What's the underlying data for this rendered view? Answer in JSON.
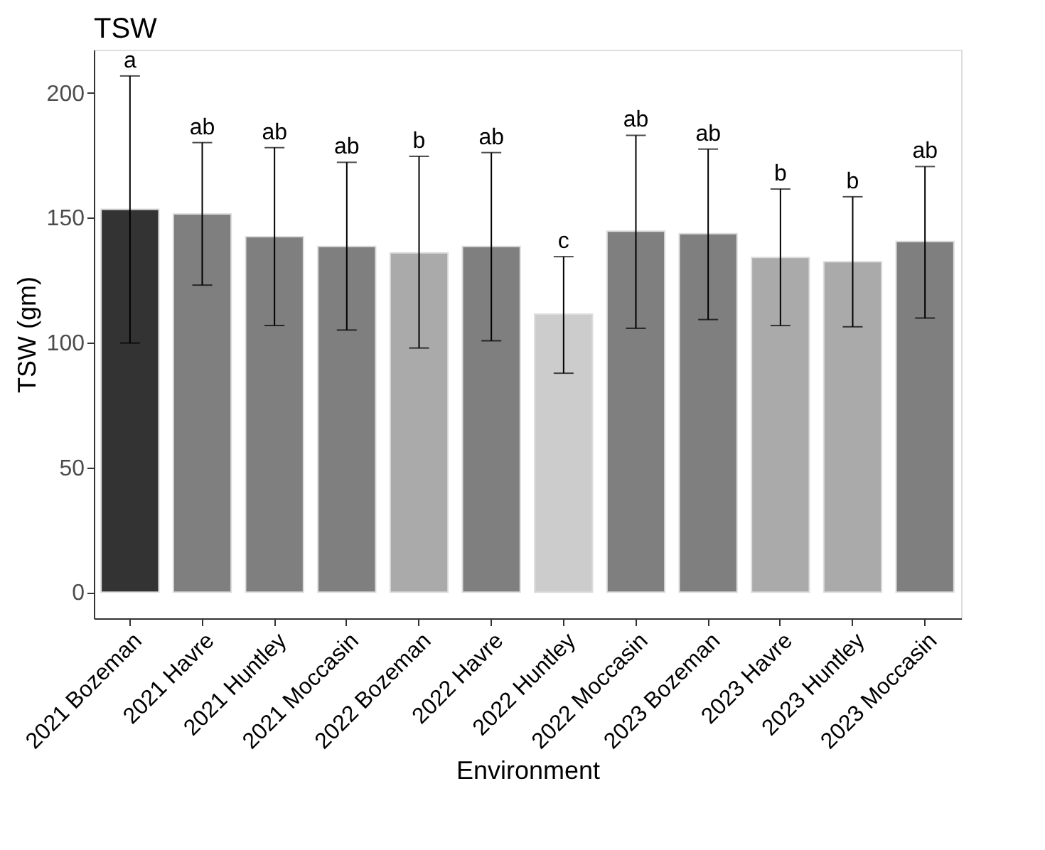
{
  "chart_data": {
    "type": "bar",
    "title": "TSW",
    "xlabel": "Environment",
    "ylabel": "TSW (gm)",
    "categories": [
      "2021 Bozeman",
      "2021 Havre",
      "2021 Huntley",
      "2021 Moccasin",
      "2022 Bozeman",
      "2022 Havre",
      "2022 Huntley",
      "2022 Moccasin",
      "2023 Bozeman",
      "2023 Havre",
      "2023 Huntley",
      "2023 Moccasin"
    ],
    "values": [
      153.4,
      151.5,
      142.4,
      138.5,
      135.9,
      138.5,
      111.4,
      144.6,
      143.6,
      134.1,
      132.4,
      140.5
    ],
    "colors": [
      "#333333",
      "#7f7f7f",
      "#7f7f7f",
      "#7f7f7f",
      "#aaaaaa",
      "#7f7f7f",
      "#cccccc",
      "#7f7f7f",
      "#7f7f7f",
      "#aaaaaa",
      "#aaaaaa",
      "#7f7f7f"
    ],
    "errors": [
      [
        99.8,
        206.8
      ],
      [
        123,
        180.1
      ],
      [
        106.8,
        178.1
      ],
      [
        105,
        172.2
      ],
      [
        97.8,
        174.6
      ],
      [
        100.7,
        176.1
      ],
      [
        87.7,
        134.4
      ],
      [
        105.7,
        183
      ],
      [
        109.2,
        177.5
      ],
      [
        106.8,
        161.5
      ],
      [
        106.3,
        158.4
      ],
      [
        109.8,
        170.5
      ]
    ],
    "annotations": [
      {
        "text": "a",
        "x": "2021 Bozeman",
        "y": 206.8
      },
      {
        "text": "ab",
        "x": "2021 Havre",
        "y": 180.1
      },
      {
        "text": "ab",
        "x": "2021 Huntley",
        "y": 178.1
      },
      {
        "text": "ab",
        "x": "2021 Moccasin",
        "y": 172.2
      },
      {
        "text": "b",
        "x": "2022 Bozeman",
        "y": 174.6
      },
      {
        "text": "ab",
        "x": "2022 Havre",
        "y": 176.1
      },
      {
        "text": "c",
        "x": "2022 Huntley",
        "y": 134.4
      },
      {
        "text": "ab",
        "x": "2022 Moccasin",
        "y": 183
      },
      {
        "text": "ab",
        "x": "2023 Bozeman",
        "y": 177.5
      },
      {
        "text": "b",
        "x": "2023 Havre",
        "y": 161.5
      },
      {
        "text": "b",
        "x": "2023 Huntley",
        "y": 158.4
      },
      {
        "text": "ab",
        "x": "2023 Moccasin",
        "y": 170.5
      }
    ],
    "ylim": [
      -10.5,
      217.3
    ],
    "yticks": [
      0,
      50,
      100,
      150,
      200
    ],
    "grid": false
  }
}
